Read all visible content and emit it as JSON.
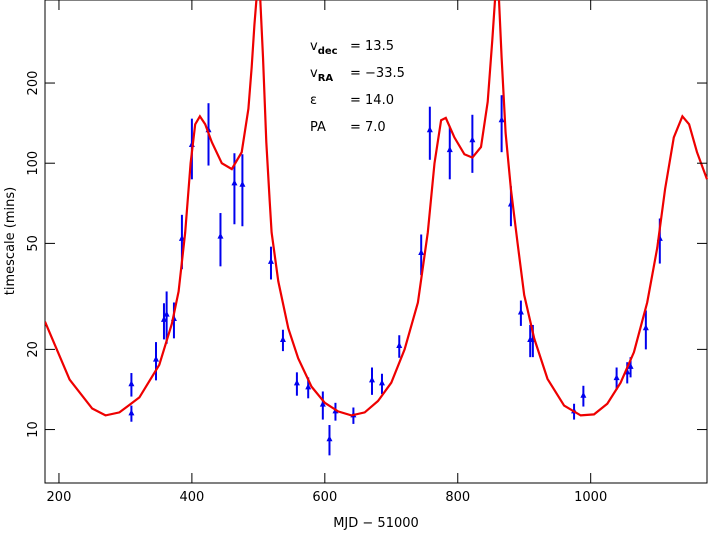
{
  "chart_data": {
    "type": "scatter",
    "log_y": true,
    "xlabel": "MJD − 51000",
    "ylabel": "timescale (mins)",
    "xlim": [
      179,
      1175
    ],
    "ylim": [
      6.3,
      410
    ],
    "xticks": [
      200,
      400,
      600,
      800,
      1000
    ],
    "yticks": [
      10,
      20,
      50,
      100,
      200
    ],
    "annotations": [
      {
        "symbol": "v",
        "subscript": "dec",
        "text": "=  13.5"
      },
      {
        "symbol": "v",
        "subscript": "RA",
        "text": "= −33.5"
      },
      {
        "symbol": "ε",
        "text": "=  14.0"
      },
      {
        "symbol": "PA",
        "text": "=   7.0"
      }
    ],
    "series": [
      {
        "color": "#0000ee",
        "x": [
          309,
          309,
          346,
          358,
          362,
          373,
          385,
          400,
          425,
          443,
          464,
          476,
          519,
          537,
          558,
          575,
          597,
          607,
          616,
          643,
          671,
          686,
          712,
          745,
          758,
          788,
          822,
          866,
          880,
          895,
          909,
          913,
          975,
          989,
          1039,
          1055,
          1060,
          1083,
          1104
        ],
        "values": [
          14.8,
          11.5,
          18.3,
          25.8,
          27,
          26,
          52,
          117,
          133,
          53,
          84,
          83,
          42.6,
          21.7,
          14.9,
          14.4,
          12.4,
          9.2,
          11.7,
          11.3,
          15.3,
          14.9,
          20.6,
          46,
          133,
          112,
          122,
          145,
          70,
          27.5,
          21.7,
          21.7,
          11.7,
          13.4,
          15.6,
          16.4,
          17.2,
          24,
          52
        ],
        "errors": [
          1.5,
          0.8,
          3,
          4,
          6,
          4,
          12,
          30,
          35,
          12,
          25,
          25,
          6,
          2,
          1.5,
          1.3,
          1.5,
          1.2,
          0.9,
          0.8,
          1.8,
          1.3,
          2,
          8,
          30,
          25,
          30,
          35,
          12,
          3,
          3,
          3,
          0.8,
          1.2,
          1.5,
          1.5,
          1.5,
          4,
          10
        ]
      },
      {
        "type": "line",
        "color": "#ee0000",
        "x": [
          179,
          216,
          250,
          270,
          291,
          321,
          351,
          370,
          380,
          390,
          398,
          405,
          412,
          420,
          430,
          445,
          460,
          475,
          485,
          490,
          494,
          497,
          null,
          503,
          507,
          512,
          517,
          520,
          530,
          545,
          560,
          580,
          600,
          620,
          640,
          660,
          680,
          700,
          720,
          740,
          755,
          765,
          775,
          782,
          795,
          810,
          822,
          835,
          845,
          852,
          856,
          null,
          862,
          866,
          872,
          880,
          890,
          900,
          915,
          935,
          960,
          985,
          1005,
          1025,
          1045,
          1065,
          1085,
          1100,
          1112,
          1125,
          1138,
          1148,
          1160,
          1175
        ],
        "values": [
          25.4,
          15.4,
          12,
          11.3,
          11.6,
          13.2,
          17.5,
          25,
          33,
          55,
          100,
          140,
          150,
          140,
          120,
          100,
          95,
          110,
          160,
          230,
          330,
          410,
          null,
          410,
          250,
          120,
          72,
          55,
          36,
          24,
          18.5,
          14.5,
          12.6,
          11.7,
          11.3,
          11.6,
          12.8,
          15,
          20,
          30,
          55,
          100,
          145,
          148,
          125,
          108,
          105,
          115,
          170,
          290,
          410,
          null,
          410,
          250,
          130,
          80,
          50,
          32,
          22,
          15.5,
          12.3,
          11.3,
          11.4,
          12.5,
          15,
          19.5,
          30,
          48,
          80,
          125,
          150,
          140,
          110,
          87
        ]
      }
    ]
  }
}
